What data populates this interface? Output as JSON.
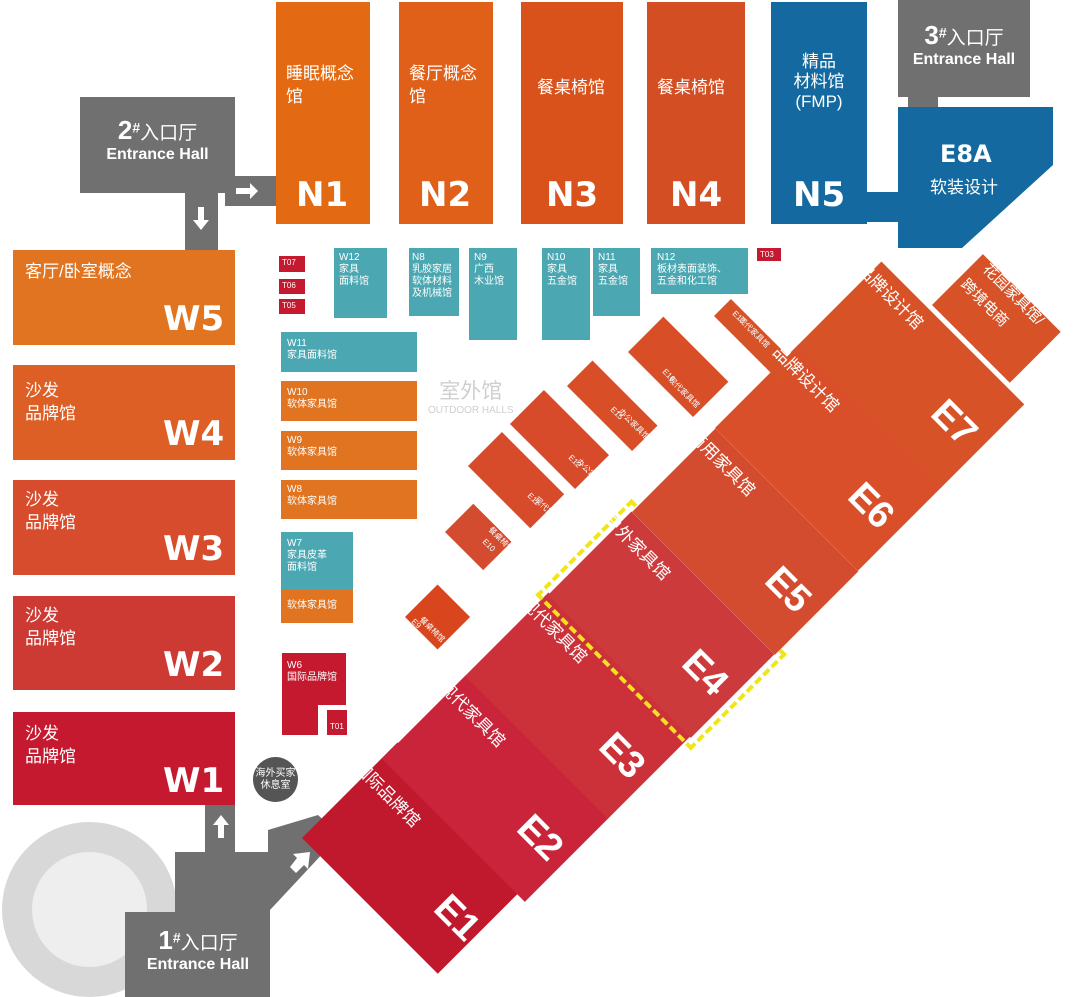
{
  "colors": {
    "gray": "#707070",
    "blue": "#146aa0",
    "teal": "#4ba7b1",
    "orange": "#e07420",
    "yellow": "#f0e51d"
  },
  "entrances": [
    {
      "num": "1",
      "cn": "入口厅",
      "en": "Entrance Hall"
    },
    {
      "num": "2",
      "cn": "入口厅",
      "en": "Entrance Hall"
    },
    {
      "num": "3",
      "cn": "入口厅",
      "en": "Entrance Hall"
    }
  ],
  "hash": "#",
  "north_halls": [
    {
      "id": "N1",
      "label": "睡眠概念\n馆"
    },
    {
      "id": "N2",
      "label": "餐厅概念\n馆"
    },
    {
      "id": "N3",
      "label": "餐桌椅馆"
    },
    {
      "id": "N4",
      "label": "餐桌椅馆"
    },
    {
      "id": "N5",
      "label": "精品\n材料馆\n(FMP)"
    }
  ],
  "e8a": {
    "id": "E8A",
    "label": "软装设计"
  },
  "e8b": {
    "id": "E8B",
    "line1": "花园家具馆/",
    "line2": "跨境电商"
  },
  "west_halls": [
    {
      "id": "W5",
      "label": "客厅/卧室概念"
    },
    {
      "id": "W4",
      "label": "沙发\n品牌馆"
    },
    {
      "id": "W3",
      "label": "沙发\n品牌馆"
    },
    {
      "id": "W2",
      "label": "沙发\n品牌馆"
    },
    {
      "id": "W1",
      "label": "沙发\n品牌馆"
    }
  ],
  "small_halls": {
    "W12": {
      "id": "W12",
      "label": "家具\n面料馆"
    },
    "N8": {
      "id": "N8",
      "label": "乳胶家居\n软体材料\n及机械馆"
    },
    "N9": {
      "id": "N9",
      "label": "广西\n木业馆"
    },
    "N10": {
      "id": "N10",
      "label": "家具\n五金馆"
    },
    "N11": {
      "id": "N11",
      "label": "家具\n五金馆"
    },
    "N12": {
      "id": "N12",
      "label": "板材表面装饰、\n五金和化工馆"
    },
    "W11": {
      "id": "W11",
      "label": "家具面料馆"
    },
    "W10": {
      "id": "W10",
      "label": "软体家具馆"
    },
    "W9": {
      "id": "W9",
      "label": "软体家具馆"
    },
    "W8": {
      "id": "W8",
      "label": "软体家具馆"
    },
    "W7": {
      "id": "W7",
      "label": "家具皮革\n面料馆"
    },
    "W7b": {
      "label": "软体家具馆"
    },
    "W6": {
      "id": "W6",
      "label": "国际品牌馆"
    }
  },
  "t_boxes": [
    "T07",
    "T06",
    "T05",
    "T03",
    "T01"
  ],
  "outdoor": {
    "cn": "室外馆",
    "en": "OUTDOOR HALLS"
  },
  "lounge": "海外买家\n休息室",
  "east_halls": {
    "E1": {
      "id": "E1",
      "label": "国际品牌馆"
    },
    "E2": {
      "id": "E2",
      "label": "现代家具馆"
    },
    "E3": {
      "id": "E3",
      "label": "现代家具馆"
    },
    "E4": {
      "id": "E4",
      "label": "户外家具馆"
    },
    "E5": {
      "id": "E5",
      "label": "商用家具馆"
    },
    "E6": {
      "id": "E6",
      "label": "品牌设计馆"
    },
    "E7": {
      "id": "E7",
      "label": "品牌设计馆"
    }
  },
  "east_small": {
    "E9": {
      "id": "E9",
      "label": "餐桌椅馆"
    },
    "E10": {
      "id": "E10",
      "label": "餐桌椅馆"
    },
    "E11": {
      "id": "E11",
      "label": "现代\n家具馆"
    },
    "E12": {
      "id": "E12",
      "label": "办公\n家具馆"
    },
    "E15": {
      "id": "E15",
      "label": "办公\n家具馆"
    },
    "E16": {
      "id": "E16",
      "label": "现代家具馆"
    },
    "E17": {
      "id": "E17",
      "label": "现代家具馆"
    }
  }
}
